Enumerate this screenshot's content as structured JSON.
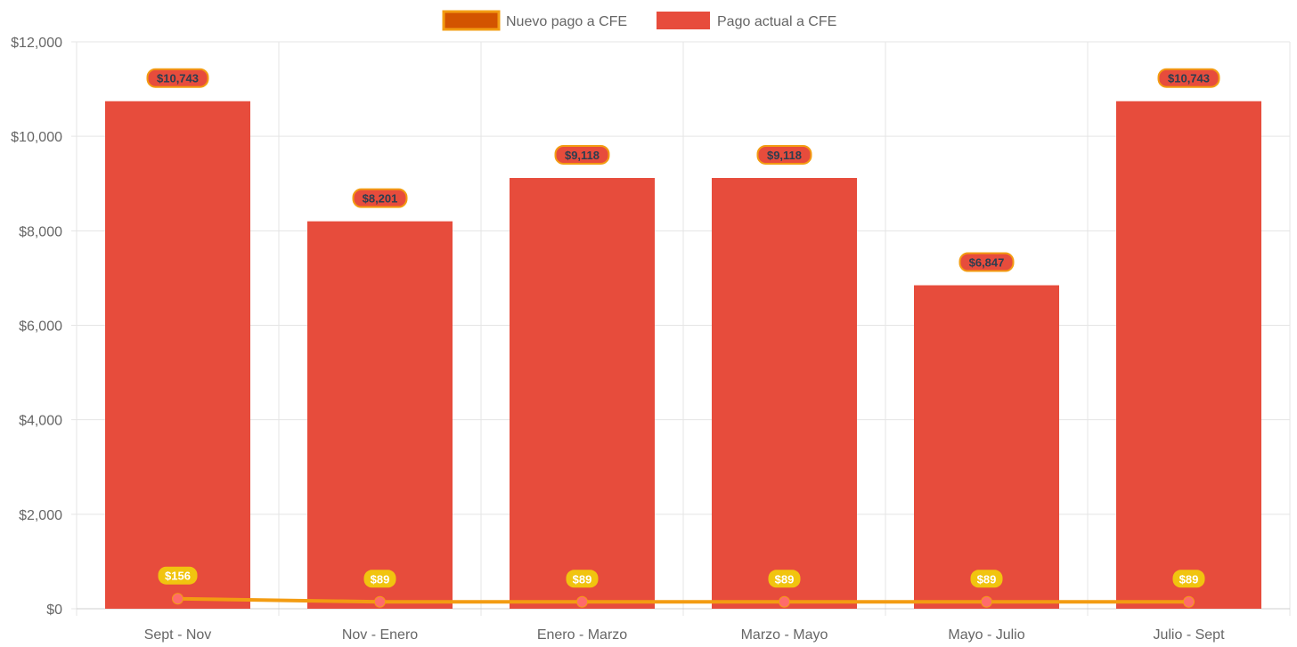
{
  "chart_data": {
    "type": "bar",
    "categories": [
      "Sept - Nov",
      "Nov - Enero",
      "Enero - Marzo",
      "Marzo - Mayo",
      "Mayo - Julio",
      "Julio - Sept"
    ],
    "series": [
      {
        "name": "Nuevo pago a CFE",
        "type": "line",
        "values": [
          156,
          89,
          89,
          89,
          89,
          89
        ],
        "labels": [
          "$156",
          "$89",
          "$89",
          "$89",
          "$89",
          "$89"
        ],
        "color": "#f39c12",
        "swatch_color": "#d35400",
        "point_color": "#ff6b6b",
        "label_bg": "#f1c40f",
        "label_text_color": "#ffffff"
      },
      {
        "name": "Pago actual a CFE",
        "type": "bar",
        "values": [
          10743,
          8201,
          9118,
          9118,
          6847,
          10743
        ],
        "labels": [
          "$10,743",
          "$8,201",
          "$9,118",
          "$9,118",
          "$6,847",
          "$10,743"
        ],
        "color": "#e74c3c",
        "label_bg": "#e74c3c",
        "label_border": "#f39c12",
        "label_text_color": "#2c3e50"
      }
    ],
    "ylim": [
      0,
      12000
    ],
    "yticks": [
      0,
      2000,
      4000,
      6000,
      8000,
      10000,
      12000
    ],
    "ytick_labels": [
      "$0",
      "$2,000",
      "$4,000",
      "$6,000",
      "$8,000",
      "$10,000",
      "$12,000"
    ],
    "grid": true,
    "legend": "top-center"
  }
}
